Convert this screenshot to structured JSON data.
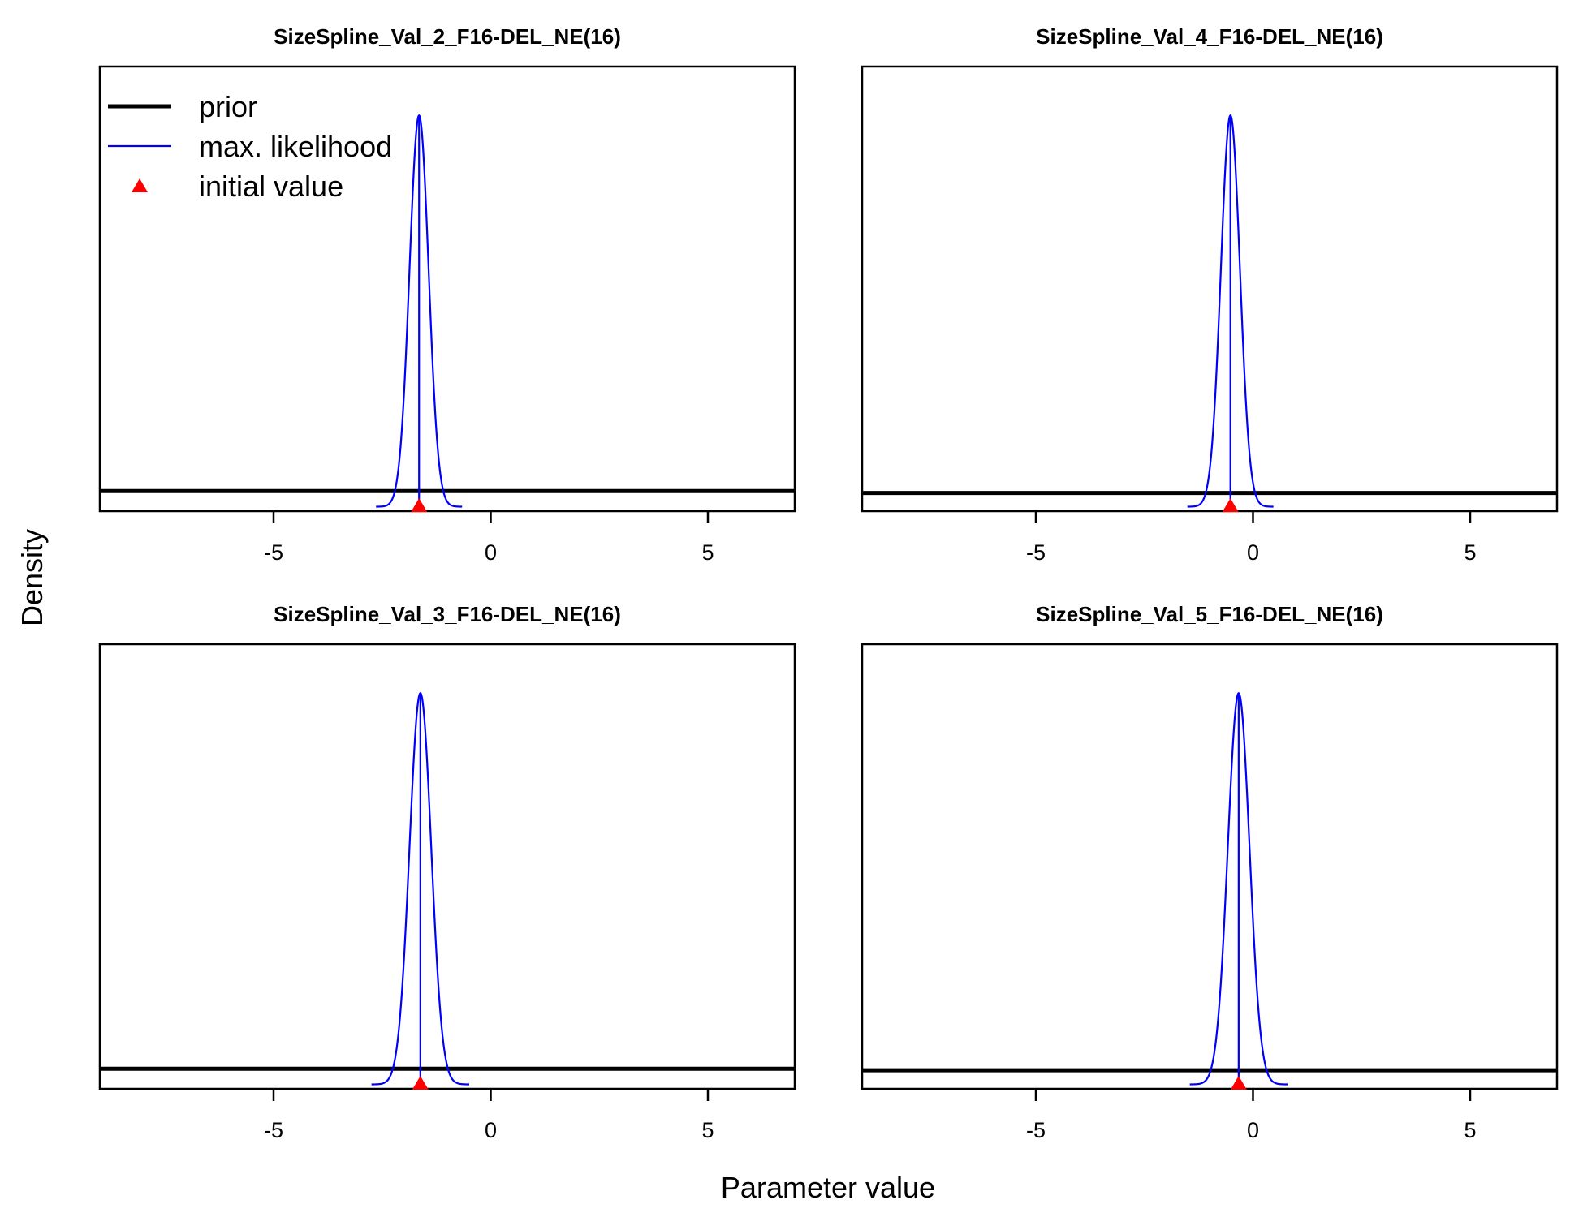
{
  "figure": {
    "xlabel": "Parameter value",
    "ylabel": "Density"
  },
  "legend": {
    "position": "top-left",
    "items": [
      {
        "label": "prior",
        "symbol": "line-thick",
        "color": "#000000"
      },
      {
        "label": "max. likelihood",
        "symbol": "line-thin",
        "color": "#0000ff"
      },
      {
        "label": "initial value",
        "symbol": "triangle",
        "color": "#ff0000"
      }
    ]
  },
  "colors": {
    "prior": "#000000",
    "mle": "#0000ff",
    "initial": "#ff0000"
  },
  "chart_data": [
    {
      "type": "line",
      "title": "SizeSpline_Val_2_F16-DEL_NE(16)",
      "xlim": [
        -9,
        7
      ],
      "xticks": [
        -5,
        0,
        5
      ],
      "xticklabels": [
        "-5",
        "0",
        "5"
      ],
      "mle": -1.65,
      "sd": 0.22,
      "initial_value": -1.65,
      "prior_level": 0.04,
      "show_legend": true
    },
    {
      "type": "line",
      "title": "SizeSpline_Val_4_F16-DEL_NE(16)",
      "xlim": [
        -9,
        7
      ],
      "xticks": [
        -5,
        0,
        5
      ],
      "xticklabels": [
        "-5",
        "0",
        "5"
      ],
      "mle": -0.52,
      "sd": 0.22,
      "initial_value": -0.52,
      "prior_level": 0.035,
      "show_legend": false
    },
    {
      "type": "line",
      "title": "SizeSpline_Val_3_F16-DEL_NE(16)",
      "xlim": [
        -9,
        7
      ],
      "xticks": [
        -5,
        0,
        5
      ],
      "xticklabels": [
        "-5",
        "0",
        "5"
      ],
      "mle": -1.62,
      "sd": 0.25,
      "initial_value": -1.62,
      "prior_level": 0.04,
      "show_legend": false
    },
    {
      "type": "line",
      "title": "SizeSpline_Val_5_F16-DEL_NE(16)",
      "xlim": [
        -9,
        7
      ],
      "xticks": [
        -5,
        0,
        5
      ],
      "xticklabels": [
        "-5",
        "0",
        "5"
      ],
      "mle": -0.33,
      "sd": 0.25,
      "initial_value": -0.33,
      "prior_level": 0.036,
      "show_legend": false
    }
  ]
}
